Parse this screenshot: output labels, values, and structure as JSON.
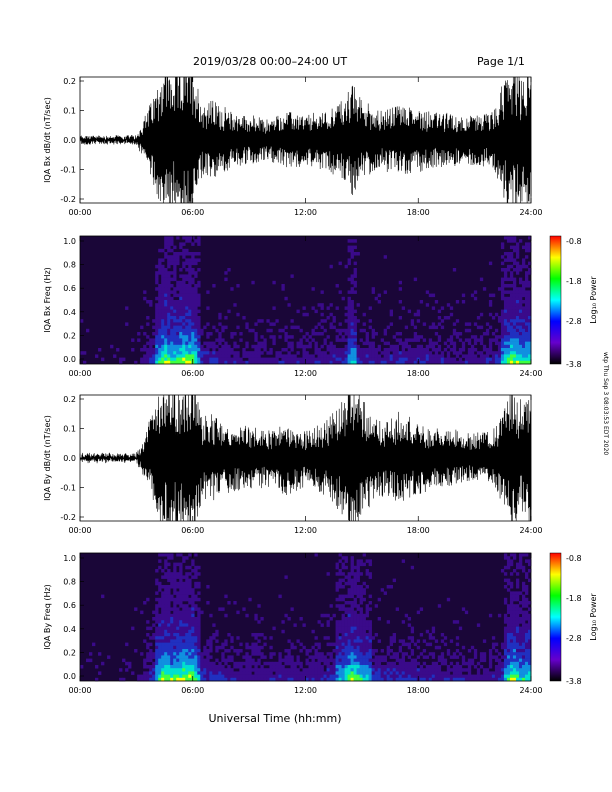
{
  "header": {
    "title": "2019/03/28   00:00–24:00 UT",
    "page": "Page 1/1"
  },
  "x_axis_label": "Universal Time (hh:mm)",
  "side_stamp": "wtp Thu Sep 3 08:03:53 EDT 2020",
  "colorbar": {
    "label": "Log₁₀ Power",
    "ticks": [
      "-0.8",
      "-1.8",
      "-2.8",
      "-3.8"
    ],
    "colors": [
      "#ff0000",
      "#ffff00",
      "#00ff00",
      "#00ffff",
      "#0000ff",
      "#6600cc",
      "#000000"
    ]
  },
  "chart_data": [
    {
      "type": "line",
      "panel": "bx-timeseries",
      "ylabel": "IQA Bx dB/dt (nT/sec)",
      "xlim": [
        "00:00",
        "24:00"
      ],
      "ylim": [
        -0.2,
        0.2
      ],
      "x_ticks": [
        "00:00",
        "06:00",
        "12:00",
        "18:00",
        "24:00"
      ],
      "y_ticks": [
        "0.2",
        "0.1",
        "0.0",
        "-0.1",
        "-0.2"
      ],
      "series": [
        {
          "x_hours": [
            0,
            1,
            2,
            3,
            3.2,
            4,
            4.5,
            5,
            5.5,
            6,
            6.5,
            7,
            8,
            9,
            10,
            11,
            12,
            13,
            14,
            14.5,
            15,
            16,
            17,
            18,
            19,
            20,
            21,
            22,
            22.5,
            23,
            23.5,
            24
          ],
          "amplitude": [
            0.01,
            0.01,
            0.01,
            0.01,
            0.03,
            0.12,
            0.2,
            0.16,
            0.2,
            0.2,
            0.09,
            0.1,
            0.07,
            0.06,
            0.05,
            0.07,
            0.06,
            0.07,
            0.1,
            0.14,
            0.1,
            0.07,
            0.09,
            0.08,
            0.07,
            0.06,
            0.06,
            0.07,
            0.14,
            0.2,
            0.15,
            0.18
          ]
        }
      ]
    },
    {
      "type": "heatmap",
      "panel": "bx-spectrogram",
      "ylabel": "IQA Bx Freq (Hz)",
      "xlim": [
        "00:00",
        "24:00"
      ],
      "ylim": [
        0.0,
        1.0
      ],
      "clim": [
        -3.8,
        -0.8
      ],
      "x_ticks": [
        "00:00",
        "06:00",
        "12:00",
        "18:00",
        "24:00"
      ],
      "y_ticks": [
        "1.0",
        "0.8",
        "0.6",
        "0.4",
        "0.2",
        "0.0"
      ]
    },
    {
      "type": "line",
      "panel": "by-timeseries",
      "ylabel": "IQA By dB/dt (nT/sec)",
      "xlim": [
        "00:00",
        "24:00"
      ],
      "ylim": [
        -0.2,
        0.2
      ],
      "x_ticks": [
        "00:00",
        "06:00",
        "12:00",
        "18:00",
        "24:00"
      ],
      "y_ticks": [
        "0.2",
        "0.1",
        "0.0",
        "-0.1",
        "-0.2"
      ],
      "series": [
        {
          "x_hours": [
            0,
            1,
            2,
            3,
            3.2,
            4,
            4.5,
            5,
            5.5,
            6,
            6.5,
            7,
            8,
            9,
            10,
            11,
            12,
            13,
            14,
            14.5,
            15,
            16,
            17,
            18,
            19,
            20,
            21,
            22,
            22.5,
            23,
            23.5,
            24
          ],
          "amplitude": [
            0.01,
            0.01,
            0.01,
            0.01,
            0.03,
            0.13,
            0.2,
            0.18,
            0.2,
            0.2,
            0.1,
            0.11,
            0.08,
            0.08,
            0.07,
            0.09,
            0.07,
            0.09,
            0.14,
            0.2,
            0.15,
            0.09,
            0.11,
            0.09,
            0.07,
            0.07,
            0.06,
            0.07,
            0.12,
            0.2,
            0.14,
            0.16
          ]
        }
      ]
    },
    {
      "type": "heatmap",
      "panel": "by-spectrogram",
      "ylabel": "IQA By Freq (Hz)",
      "xlim": [
        "00:00",
        "24:00"
      ],
      "ylim": [
        0.0,
        1.0
      ],
      "clim": [
        -3.8,
        -0.8
      ],
      "x_ticks": [
        "00:00",
        "06:00",
        "12:00",
        "18:00",
        "24:00"
      ],
      "y_ticks": [
        "1.0",
        "0.8",
        "0.6",
        "0.4",
        "0.2",
        "0.0"
      ]
    }
  ]
}
